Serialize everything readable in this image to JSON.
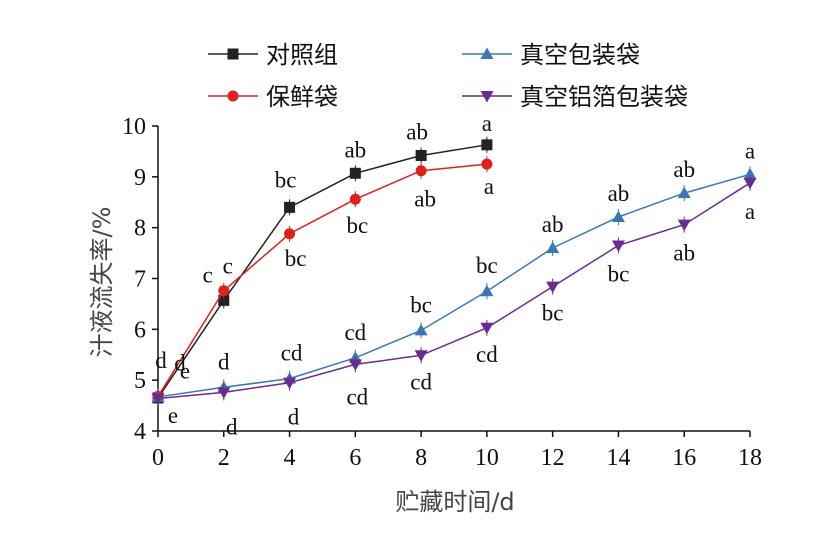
{
  "chart_data": {
    "type": "line",
    "xlabel": "贮藏时间/d",
    "ylabel": "汁液流失率/%",
    "xlim": [
      0,
      18
    ],
    "ylim": [
      4,
      10
    ],
    "xticks": [
      0,
      2,
      4,
      6,
      8,
      10,
      12,
      14,
      16,
      18
    ],
    "yticks": [
      4,
      5,
      6,
      7,
      8,
      9,
      10
    ],
    "grid": false,
    "legend_position": "top",
    "series": [
      {
        "name": "对照组",
        "color": "#222222",
        "marker": "square",
        "x": [
          0,
          2,
          4,
          6,
          8,
          10
        ],
        "y": [
          4.65,
          6.57,
          8.4,
          9.07,
          9.42,
          9.63
        ],
        "labels": [
          "d",
          "c",
          "bc",
          "ab",
          "ab",
          "a"
        ]
      },
      {
        "name": "保鲜袋",
        "color": "#e0201b",
        "marker": "circle",
        "x": [
          0,
          2,
          4,
          6,
          8,
          10
        ],
        "y": [
          4.68,
          6.76,
          7.88,
          8.56,
          9.12,
          9.25
        ],
        "labels": [
          "d",
          "c",
          "bc",
          "bc",
          "ab",
          "a"
        ]
      },
      {
        "name": "真空包装袋",
        "color": "#3a78b5",
        "marker": "triangle-up",
        "x": [
          0,
          2,
          4,
          6,
          8,
          10,
          12,
          14,
          16,
          18
        ],
        "y": [
          4.67,
          4.86,
          5.03,
          5.44,
          5.98,
          6.75,
          7.6,
          8.21,
          8.68,
          9.05
        ],
        "labels": [
          "e",
          "d",
          "cd",
          "cd",
          "bc",
          "bc",
          "ab",
          "ab",
          "ab",
          "a"
        ]
      },
      {
        "name": "真空铝箔包装袋",
        "color": "#6a2c91",
        "marker": "triangle-down",
        "x": [
          0,
          2,
          4,
          6,
          8,
          10,
          12,
          14,
          16,
          18
        ],
        "y": [
          4.64,
          4.76,
          4.95,
          5.31,
          5.49,
          6.03,
          6.84,
          7.65,
          8.06,
          8.88
        ],
        "labels": [
          "e",
          "d",
          "d",
          "cd",
          "cd",
          "cd",
          "bc",
          "bc",
          "ab",
          "a"
        ]
      }
    ]
  }
}
